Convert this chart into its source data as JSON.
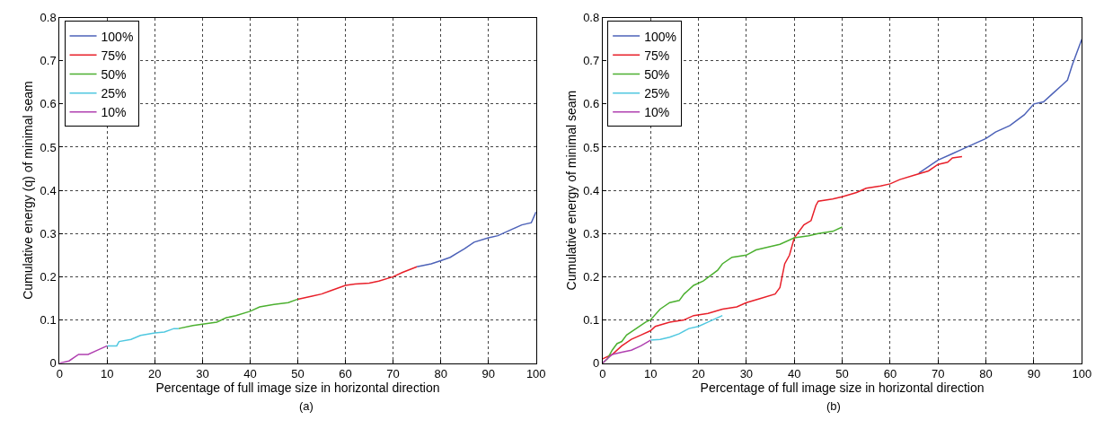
{
  "chart_data": [
    {
      "type": "line",
      "xlabel": "Percentage of full image size in horizontal direction",
      "ylabel": "Cumulative energy (q) of minimal seam",
      "annotations": [
        "(a)"
      ],
      "xlim": [
        0,
        100
      ],
      "ylim": [
        0,
        0.8
      ],
      "xticks": [
        0,
        10,
        20,
        30,
        40,
        50,
        60,
        70,
        80,
        90,
        100
      ],
      "yticks": [
        0,
        0.1,
        0.2,
        0.3,
        0.4,
        0.5,
        0.6,
        0.7,
        0.8
      ],
      "grid": true,
      "legend": "top left",
      "line_style": "solid",
      "series": [
        {
          "name": "100%",
          "color": "#4d62b8",
          "x": [
            75,
            78,
            80,
            82,
            85,
            87,
            90,
            92,
            95,
            97,
            99,
            100
          ],
          "values": [
            0.223,
            0.23,
            0.237,
            0.245,
            0.265,
            0.28,
            0.29,
            0.295,
            0.31,
            0.32,
            0.325,
            0.35
          ]
        },
        {
          "name": "75%",
          "color": "#e8202a",
          "x": [
            50,
            53,
            55,
            57,
            60,
            62,
            65,
            67,
            70,
            72,
            75
          ],
          "values": [
            0.148,
            0.155,
            0.16,
            0.168,
            0.18,
            0.183,
            0.185,
            0.19,
            0.2,
            0.21,
            0.223
          ]
        },
        {
          "name": "50%",
          "color": "#4cb030",
          "x": [
            25,
            28,
            30,
            33,
            35,
            37,
            40,
            42,
            45,
            48,
            50
          ],
          "values": [
            0.08,
            0.087,
            0.09,
            0.095,
            0.105,
            0.11,
            0.12,
            0.13,
            0.136,
            0.14,
            0.148
          ]
        },
        {
          "name": "25%",
          "color": "#50c8e0",
          "x": [
            10,
            12,
            12.5,
            15,
            17,
            20,
            22,
            24,
            25
          ],
          "values": [
            0.04,
            0.04,
            0.05,
            0.055,
            0.064,
            0.07,
            0.072,
            0.08,
            0.08
          ]
        },
        {
          "name": "10%",
          "color": "#b040b0",
          "x": [
            0,
            2,
            4,
            6,
            8,
            10
          ],
          "values": [
            0,
            0.005,
            0.02,
            0.02,
            0.03,
            0.04
          ]
        }
      ]
    },
    {
      "type": "line",
      "xlabel": "Percentage of full image size in horizontal direction",
      "ylabel": "Cumulative energy of minimal seam",
      "annotations": [
        "(b)"
      ],
      "xlim": [
        0,
        100
      ],
      "ylim": [
        0,
        0.8
      ],
      "xticks": [
        0,
        10,
        20,
        30,
        40,
        50,
        60,
        70,
        80,
        90,
        100
      ],
      "yticks": [
        0,
        0.1,
        0.2,
        0.3,
        0.4,
        0.5,
        0.6,
        0.7,
        0.8
      ],
      "grid": true,
      "legend": "top left",
      "line_style": "solid",
      "series": [
        {
          "name": "100%",
          "color": "#4d62b8",
          "x": [
            66,
            68,
            70,
            73,
            75,
            78,
            80,
            82,
            85,
            88,
            90,
            92,
            94,
            96,
            97,
            98,
            99,
            100
          ],
          "values": [
            0.44,
            0.455,
            0.47,
            0.485,
            0.495,
            0.51,
            0.52,
            0.535,
            0.55,
            0.575,
            0.6,
            0.605,
            0.625,
            0.645,
            0.655,
            0.69,
            0.72,
            0.75
          ]
        },
        {
          "name": "75%",
          "color": "#e8202a",
          "x": [
            0,
            2,
            4,
            6,
            8,
            10,
            11,
            14,
            17,
            19,
            22,
            25,
            28,
            30,
            33,
            36,
            37,
            38,
            39,
            40,
            42,
            43.5,
            44.5,
            45,
            48,
            50,
            53,
            55,
            58,
            60,
            62,
            65,
            68,
            70,
            72,
            73,
            75
          ],
          "values": [
            0.01,
            0.02,
            0.04,
            0.055,
            0.065,
            0.075,
            0.085,
            0.095,
            0.1,
            0.11,
            0.115,
            0.125,
            0.13,
            0.14,
            0.15,
            0.16,
            0.175,
            0.23,
            0.25,
            0.29,
            0.32,
            0.33,
            0.365,
            0.375,
            0.38,
            0.385,
            0.395,
            0.405,
            0.41,
            0.415,
            0.425,
            0.435,
            0.445,
            0.46,
            0.465,
            0.475,
            0.478
          ]
        },
        {
          "name": "50%",
          "color": "#4cb030",
          "x": [
            0,
            1,
            2,
            3,
            4,
            5,
            7,
            9,
            10,
            12,
            14,
            16,
            17,
            19,
            21,
            24,
            25,
            27,
            30,
            32,
            35,
            37,
            40,
            43,
            45,
            48,
            50
          ],
          "values": [
            0,
            0.01,
            0.03,
            0.045,
            0.05,
            0.065,
            0.08,
            0.095,
            0.1,
            0.125,
            0.14,
            0.145,
            0.16,
            0.18,
            0.19,
            0.215,
            0.23,
            0.245,
            0.25,
            0.262,
            0.27,
            0.275,
            0.29,
            0.295,
            0.3,
            0.305,
            0.315
          ]
        },
        {
          "name": "25%",
          "color": "#50c8e0",
          "x": [
            10,
            12,
            14,
            16,
            18,
            20,
            22,
            25
          ],
          "values": [
            0.053,
            0.055,
            0.06,
            0.068,
            0.08,
            0.085,
            0.095,
            0.11
          ]
        },
        {
          "name": "10%",
          "color": "#b040b0",
          "x": [
            0,
            1,
            2,
            4,
            6,
            8,
            10
          ],
          "values": [
            0,
            0.01,
            0.02,
            0.025,
            0.03,
            0.04,
            0.053
          ]
        }
      ]
    }
  ]
}
